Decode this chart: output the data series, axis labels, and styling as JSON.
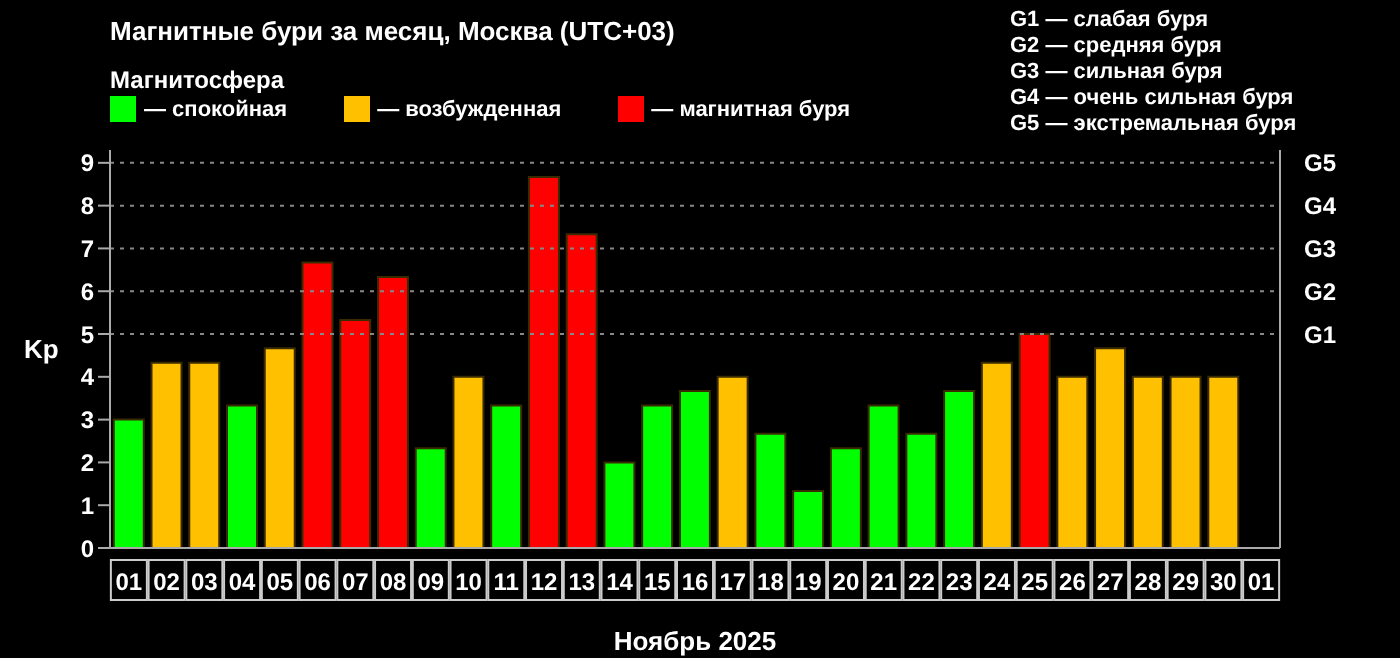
{
  "chart_data": {
    "type": "bar",
    "title": "Магнитные бури за месяц, Москва (UTC+03)",
    "legend_title": "Магнитосфера",
    "xlabel": "Ноябрь 2025",
    "ylabel": "Kp",
    "categories": [
      "01",
      "02",
      "03",
      "04",
      "05",
      "06",
      "07",
      "08",
      "09",
      "10",
      "11",
      "12",
      "13",
      "14",
      "15",
      "16",
      "17",
      "18",
      "19",
      "20",
      "21",
      "22",
      "23",
      "24",
      "25",
      "26",
      "27",
      "28",
      "29",
      "30",
      "01"
    ],
    "stacked": true,
    "series": [
      {
        "name": "— спокойная",
        "color": "#00ff00",
        "values": [
          3,
          null,
          null,
          3.33,
          null,
          null,
          null,
          null,
          2.33,
          null,
          3.33,
          null,
          null,
          2,
          3.33,
          3.67,
          null,
          2.67,
          1.33,
          2.33,
          3.33,
          2.67,
          3.67,
          null,
          null,
          null,
          null,
          null,
          null,
          null,
          null
        ]
      },
      {
        "name": "— возбужденная",
        "color": "#ffc000",
        "values": [
          null,
          4.33,
          4.33,
          null,
          4.67,
          null,
          null,
          null,
          null,
          4,
          null,
          null,
          null,
          null,
          null,
          null,
          4,
          null,
          null,
          null,
          null,
          null,
          null,
          4.33,
          null,
          4,
          4.67,
          4,
          4,
          4,
          null
        ]
      },
      {
        "name": "— магнитная буря",
        "color": "#ff0000",
        "values": [
          null,
          null,
          null,
          null,
          null,
          6.67,
          5.33,
          6.33,
          null,
          null,
          null,
          8.67,
          7.33,
          null,
          null,
          null,
          null,
          null,
          null,
          null,
          null,
          null,
          null,
          null,
          5,
          null,
          null,
          null,
          null,
          null,
          null
        ]
      }
    ],
    "ylim": [
      0,
      9.3
    ],
    "yticks": [
      0,
      1,
      2,
      3,
      4,
      5,
      6,
      7,
      8,
      9
    ],
    "ref_lines": [
      {
        "axis": "y",
        "value": 5,
        "label": "G1",
        "color": "#888888",
        "line_style": "dotted"
      },
      {
        "axis": "y",
        "value": 6,
        "label": "G2",
        "color": "#888888",
        "line_style": "dotted"
      },
      {
        "axis": "y",
        "value": 7,
        "label": "G3",
        "color": "#888888",
        "line_style": "dotted"
      },
      {
        "axis": "y",
        "value": 8,
        "label": "G4",
        "color": "#888888",
        "line_style": "dotted"
      },
      {
        "axis": "y",
        "value": 9,
        "label": "G5",
        "color": "#888888",
        "line_style": "dotted"
      }
    ],
    "legend": "top left",
    "annotations": [
      "G1 — слабая буря",
      "G2 — средняя буря",
      "G3 — сильная буря",
      "G4 — очень сильная буря",
      "G5 — экстремальная буря"
    ]
  }
}
